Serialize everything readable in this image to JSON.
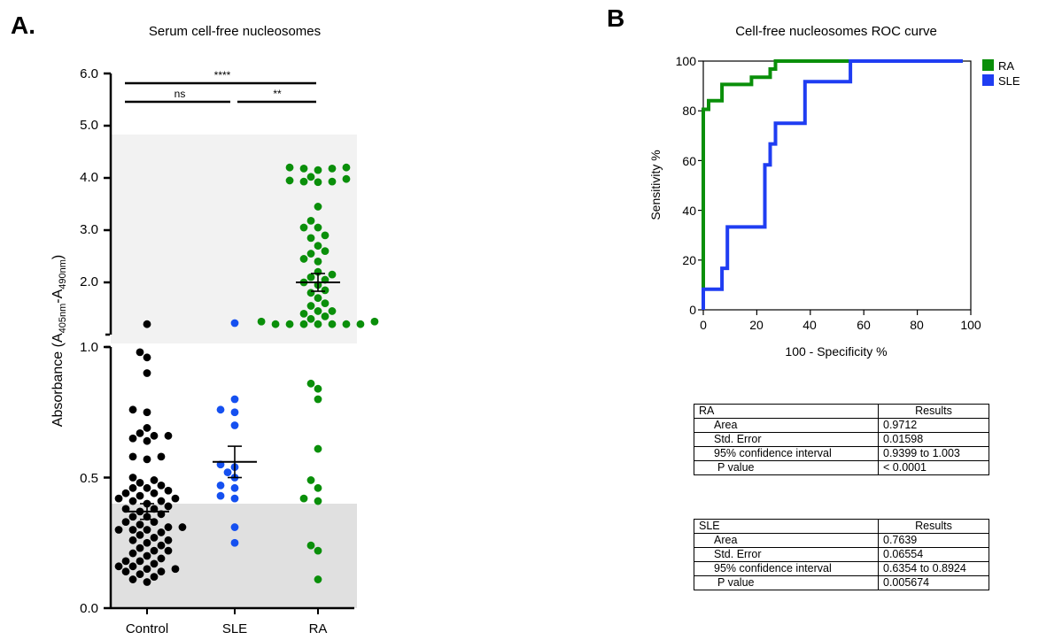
{
  "panel_a": {
    "letter": "A.",
    "title": "Serum cell-free nucleosomes",
    "ylabel": {
      "main": "Absorbance (A",
      "sub1": "405nm",
      "mid": "-A",
      "sub2": "490nm",
      "end": ")"
    },
    "upper_ticks": [
      "6.0",
      "5.0",
      "4.0",
      "3.0",
      "2.0"
    ],
    "lower_ticks": [
      "1.0",
      "0.5",
      "0.0"
    ],
    "sig": {
      "overall": "****",
      "control_vs_sle": "ns",
      "sle_vs_ra": "**"
    }
  },
  "panel_b": {
    "letter": "B",
    "title": "Cell-free nucleosomes ROC curve",
    "xlabel": "100 - Specificity %",
    "ylabel": "Sensitivity %",
    "x_ticks": [
      "0",
      "20",
      "40",
      "60",
      "80",
      "100"
    ],
    "y_ticks": [
      "0",
      "20",
      "40",
      "60",
      "80",
      "100"
    ],
    "legend": [
      {
        "label": "RA",
        "color": "#0a8f0a"
      },
      {
        "label": "SLE",
        "color": "#1f3df2"
      }
    ]
  },
  "colors": {
    "control": "#000000",
    "sle": "#1550f0",
    "ra": "#0a8f0a",
    "roc_ra": "#0a8f0a",
    "roc_sle": "#1f3df2",
    "band_upper": "#f2f2f2",
    "band_lower": "#e0e0e0"
  },
  "tables": {
    "ra": {
      "header": [
        "RA",
        "Results"
      ],
      "rows": [
        [
          "Area",
          "0.9712"
        ],
        [
          "Std. Error",
          "0.01598"
        ],
        [
          "95% confidence interval",
          "0.9399 to 1.003"
        ],
        [
          "P value",
          "< 0.0001"
        ]
      ]
    },
    "sle": {
      "header": [
        "SLE",
        "Results"
      ],
      "rows": [
        [
          "Area",
          "0.7639"
        ],
        [
          "Std. Error",
          "0.06554"
        ],
        [
          "95% confidence interval",
          "0.6354 to 0.8924"
        ],
        [
          "P value",
          "0.005674"
        ]
      ]
    }
  },
  "chart_data": [
    {
      "type": "scatter",
      "title": "Serum cell-free nucleosomes",
      "ylabel": "Absorbance (A405nm-A490nm)",
      "categories": [
        "Control",
        "SLE",
        "RA"
      ],
      "y_axis": "broken: lower segment 0.0-1.0, upper segment 1.0-6.0",
      "series": [
        {
          "name": "Control",
          "values": [
            1.2,
            0.98,
            0.96,
            0.9,
            0.76,
            0.75,
            0.69,
            0.67,
            0.66,
            0.66,
            0.65,
            0.64,
            0.58,
            0.58,
            0.57,
            0.5,
            0.49,
            0.48,
            0.47,
            0.46,
            0.46,
            0.45,
            0.44,
            0.44,
            0.43,
            0.42,
            0.42,
            0.41,
            0.41,
            0.4,
            0.39,
            0.38,
            0.38,
            0.37,
            0.36,
            0.35,
            0.35,
            0.33,
            0.33,
            0.32,
            0.31,
            0.31,
            0.3,
            0.3,
            0.3,
            0.29,
            0.28,
            0.27,
            0.26,
            0.26,
            0.25,
            0.24,
            0.23,
            0.22,
            0.22,
            0.21,
            0.2,
            0.19,
            0.18,
            0.18,
            0.17,
            0.16,
            0.16,
            0.15,
            0.15,
            0.14,
            0.14,
            0.13,
            0.12,
            0.11,
            0.1
          ],
          "mean": 0.37,
          "sem": 0.03
        },
        {
          "name": "SLE",
          "values": [
            1.22,
            0.8,
            0.76,
            0.75,
            0.7,
            0.55,
            0.54,
            0.52,
            0.5,
            0.47,
            0.46,
            0.43,
            0.42,
            0.31,
            0.25
          ],
          "mean": 0.56,
          "sem": 0.06
        },
        {
          "name": "RA",
          "values": [
            4.2,
            4.2,
            4.18,
            4.18,
            4.15,
            4.02,
            3.98,
            3.95,
            3.93,
            3.93,
            3.92,
            3.45,
            3.18,
            3.05,
            3.05,
            2.9,
            2.85,
            2.7,
            2.6,
            2.55,
            2.45,
            2.4,
            2.2,
            2.15,
            2.1,
            2.05,
            2.0,
            1.95,
            1.85,
            1.8,
            1.7,
            1.6,
            1.55,
            1.45,
            1.45,
            1.4,
            1.35,
            1.3,
            1.25,
            1.25,
            1.2,
            1.2,
            1.2,
            1.2,
            1.2,
            1.2,
            1.2,
            0.86,
            0.84,
            0.8,
            0.61,
            0.49,
            0.46,
            0.42,
            0.41,
            0.24,
            0.22,
            0.11
          ],
          "mean": 2.0,
          "sem": 0.17
        }
      ]
    },
    {
      "type": "line",
      "title": "Cell-free nucleosomes ROC curve",
      "xlabel": "100 - Specificity %",
      "ylabel": "Sensitivity %",
      "xlim": [
        0,
        100
      ],
      "ylim": [
        0,
        100
      ],
      "legend": "top-right",
      "series": [
        {
          "name": "RA",
          "points": [
            [
              0,
              0
            ],
            [
              0,
              80.6
            ],
            [
              2,
              80.6
            ],
            [
              2,
              84.1
            ],
            [
              7,
              84.1
            ],
            [
              7,
              90.6
            ],
            [
              18,
              90.6
            ],
            [
              18,
              93.5
            ],
            [
              25,
              93.5
            ],
            [
              25,
              96.8
            ],
            [
              27,
              96.8
            ],
            [
              27,
              100
            ],
            [
              97,
              100
            ]
          ]
        },
        {
          "name": "SLE",
          "points": [
            [
              0,
              0
            ],
            [
              0,
              8.3
            ],
            [
              7,
              8.3
            ],
            [
              7,
              16.7
            ],
            [
              9,
              16.7
            ],
            [
              9,
              33.3
            ],
            [
              23,
              33.3
            ],
            [
              23,
              58.3
            ],
            [
              25,
              58.3
            ],
            [
              25,
              66.7
            ],
            [
              27,
              66.7
            ],
            [
              27,
              75
            ],
            [
              38,
              75
            ],
            [
              38,
              91.7
            ],
            [
              55,
              91.7
            ],
            [
              55,
              100
            ],
            [
              97,
              100
            ]
          ]
        }
      ]
    }
  ]
}
